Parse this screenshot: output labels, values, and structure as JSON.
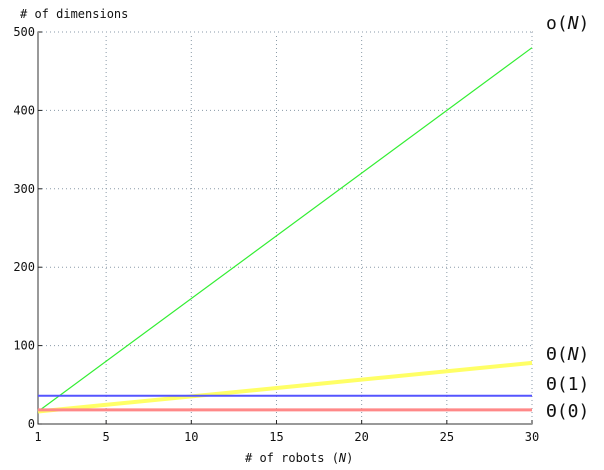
{
  "chart_data": {
    "type": "line",
    "title": "",
    "xlabel": "# of robots (",
    "xlabel_var": "N",
    "xlabel_close": ")",
    "ylabel": "# of dimensions",
    "xlim": [
      1,
      30
    ],
    "ylim": [
      0,
      500
    ],
    "x_ticks": [
      1,
      5,
      10,
      15,
      20,
      25,
      30
    ],
    "y_ticks": [
      0,
      100,
      200,
      300,
      400,
      500
    ],
    "grid": true,
    "series": [
      {
        "name_prefix": "o(",
        "name_var": "N",
        "name_suffix": ")",
        "color": "#33ee33",
        "x": [
          1,
          30
        ],
        "y": [
          16,
          480
        ]
      },
      {
        "name_prefix": "Θ(",
        "name_var": "N",
        "name_suffix": ")",
        "color": "#ffff66",
        "x": [
          1,
          30
        ],
        "y": [
          16,
          78
        ]
      },
      {
        "name_prefix": "Θ(1)",
        "name_var": "",
        "name_suffix": "",
        "color": "#5555ff",
        "x": [
          1,
          30
        ],
        "y": [
          36,
          36
        ]
      },
      {
        "name_prefix": "Θ(0)",
        "name_var": "",
        "name_suffix": "",
        "color": "#ff8888",
        "x": [
          1,
          30
        ],
        "y": [
          18,
          18
        ]
      }
    ]
  }
}
